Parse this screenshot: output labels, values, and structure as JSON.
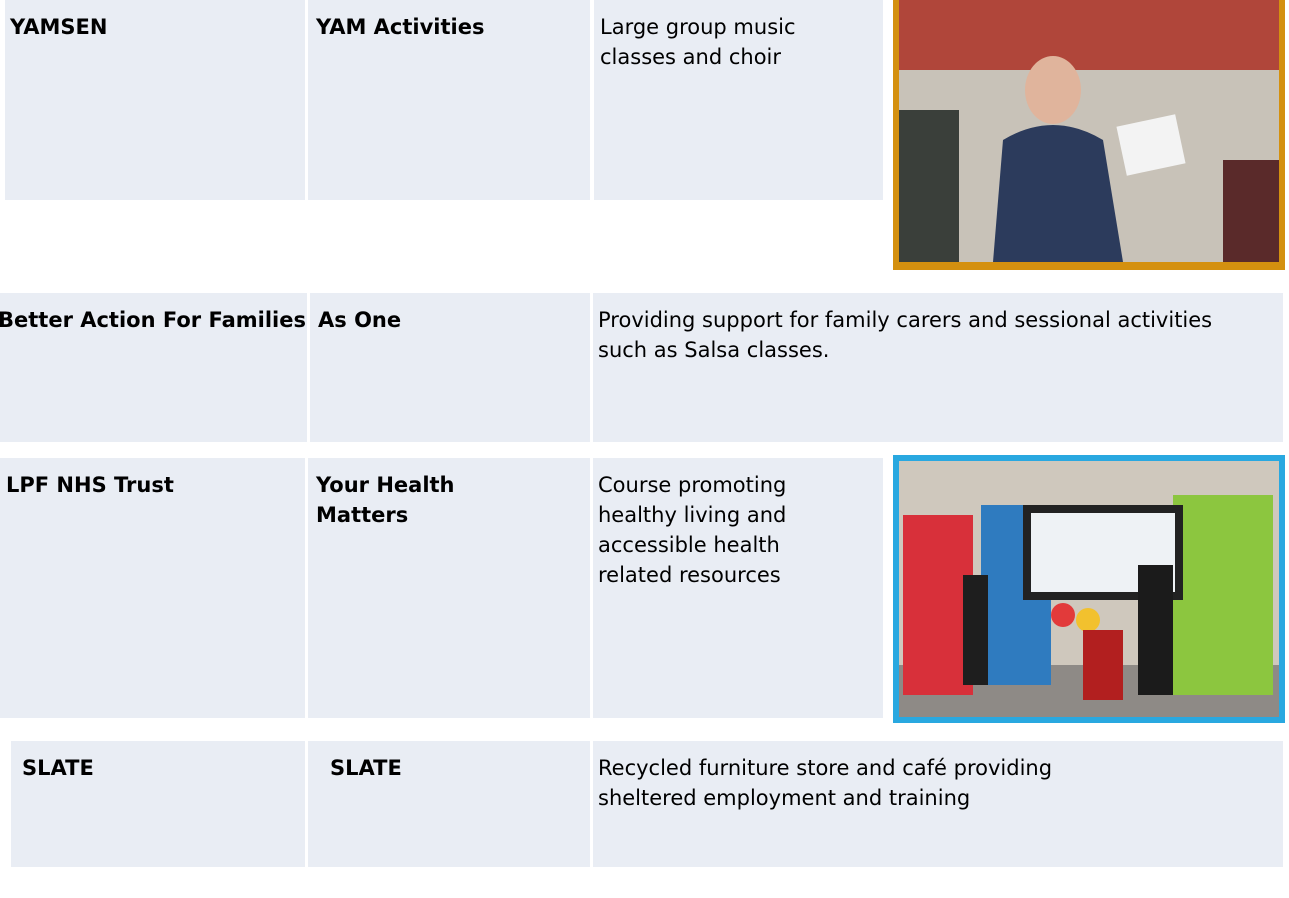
{
  "table": {
    "rows": [
      [
        "YAMSEN",
        "YAM Activities",
        "Large group music classes and choir"
      ],
      [
        "Better Action For Families",
        "As One",
        "Providing support for family carers and sessional activities such as Salsa classes."
      ],
      [
        "LPF NHS Trust",
        "Your Health Matters",
        "Course promoting healthy living and accessible health related resources"
      ],
      [
        "SLATE",
        "SLATE",
        "Recycled furniture store and café providing sheltered employment and training"
      ]
    ]
  }
}
